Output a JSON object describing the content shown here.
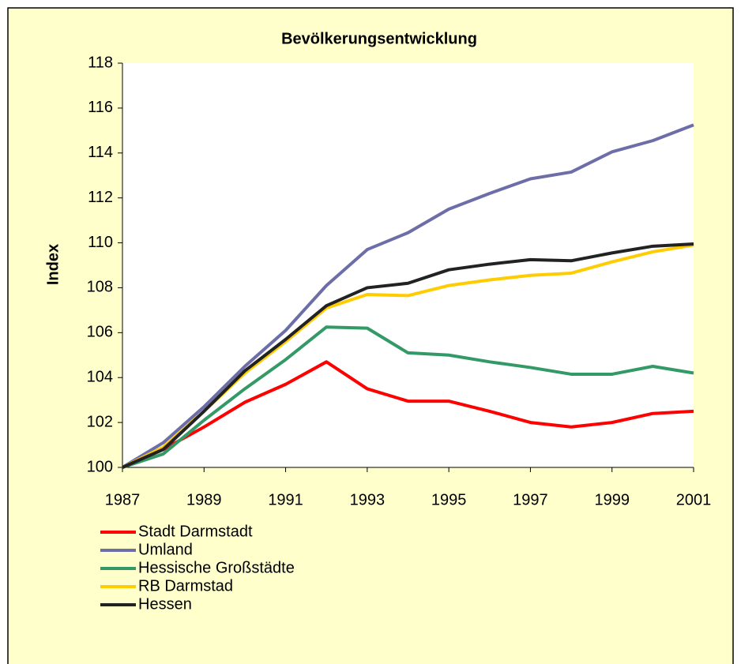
{
  "chart_data": {
    "type": "line",
    "title": "Bevölkerungsentwicklung",
    "y_label": "Index",
    "x": [
      1987,
      1988,
      1989,
      1990,
      1991,
      1992,
      1993,
      1994,
      1995,
      1996,
      1997,
      1998,
      1999,
      2000,
      2001
    ],
    "xlim": [
      1987,
      2001
    ],
    "xticks": [
      1987,
      1989,
      1991,
      1993,
      1995,
      1997,
      1999,
      2001
    ],
    "ylim": [
      100,
      118
    ],
    "yticks": [
      100,
      102,
      104,
      106,
      108,
      110,
      112,
      114,
      116,
      118
    ],
    "series": [
      {
        "name": "Stadt Darmstadt",
        "color": "#ff0000",
        "values": [
          100,
          100.8,
          101.8,
          102.9,
          103.7,
          104.7,
          103.5,
          102.95,
          102.95,
          102.5,
          102.0,
          101.8,
          102.0,
          102.4,
          102.5
        ]
      },
      {
        "name": "Umland",
        "color": "#6d6da8",
        "values": [
          100,
          101.1,
          102.7,
          104.5,
          106.1,
          108.1,
          109.7,
          110.45,
          111.5,
          112.2,
          112.85,
          113.15,
          114.05,
          114.55,
          115.25
        ]
      },
      {
        "name": "Hessische Großstädte",
        "color": "#339966",
        "values": [
          100,
          100.6,
          102.1,
          103.5,
          104.8,
          106.25,
          106.2,
          105.1,
          105.0,
          104.7,
          104.45,
          104.15,
          104.15,
          104.5,
          104.2
        ]
      },
      {
        "name": "RB Darmstad",
        "color": "#ffcc00",
        "values": [
          100,
          100.9,
          102.5,
          104.2,
          105.6,
          107.1,
          107.7,
          107.65,
          108.1,
          108.35,
          108.55,
          108.65,
          109.15,
          109.6,
          109.9
        ]
      },
      {
        "name": "Hessen",
        "color": "#222222",
        "values": [
          100,
          100.8,
          102.5,
          104.3,
          105.7,
          107.2,
          108.0,
          108.2,
          108.8,
          109.05,
          109.25,
          109.2,
          109.55,
          109.85,
          109.95
        ]
      }
    ],
    "legend": "bottom-left"
  }
}
